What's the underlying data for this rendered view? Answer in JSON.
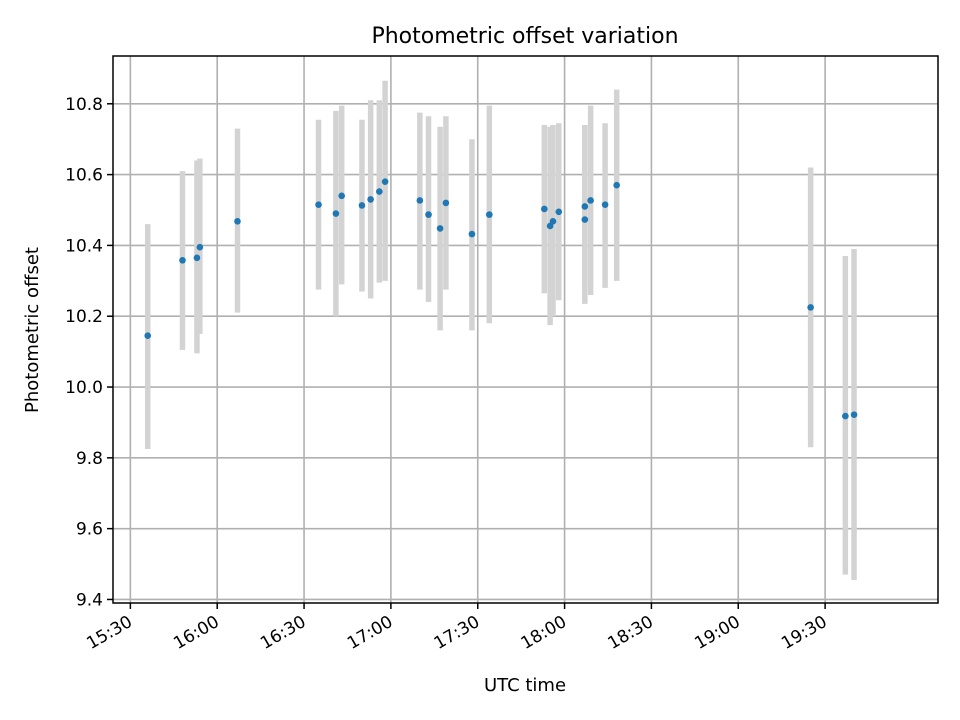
{
  "chart_data": {
    "type": "scatter",
    "title": "Photometric offset variation",
    "xlabel": "UTC time",
    "ylabel": "Photometric offset",
    "x_ticks": [
      "15:30",
      "16:00",
      "16:30",
      "17:00",
      "17:30",
      "18:00",
      "18:30",
      "19:00",
      "19:30"
    ],
    "y_ticks": [
      "9.4",
      "9.6",
      "9.8",
      "10.0",
      "10.2",
      "10.4",
      "10.6",
      "10.8"
    ],
    "xlim": [
      "15:24",
      "20:09"
    ],
    "ylim": [
      9.39,
      10.935
    ],
    "grid": true,
    "colors": {
      "point": "#1f77b4",
      "errorbar": "#d3d3d3"
    },
    "points": [
      {
        "x": "15:36",
        "y": 10.145,
        "ylow": 9.825,
        "yhigh": 10.46
      },
      {
        "x": "15:48",
        "y": 10.358,
        "ylow": 10.105,
        "yhigh": 10.61
      },
      {
        "x": "15:53",
        "y": 10.365,
        "ylow": 10.095,
        "yhigh": 10.64
      },
      {
        "x": "15:54",
        "y": 10.395,
        "ylow": 10.15,
        "yhigh": 10.645
      },
      {
        "x": "16:07",
        "y": 10.468,
        "ylow": 10.21,
        "yhigh": 10.73
      },
      {
        "x": "16:35",
        "y": 10.515,
        "ylow": 10.275,
        "yhigh": 10.755
      },
      {
        "x": "16:41",
        "y": 10.49,
        "ylow": 10.2,
        "yhigh": 10.78
      },
      {
        "x": "16:43",
        "y": 10.54,
        "ylow": 10.29,
        "yhigh": 10.795
      },
      {
        "x": "16:50",
        "y": 10.513,
        "ylow": 10.27,
        "yhigh": 10.755
      },
      {
        "x": "16:53",
        "y": 10.53,
        "ylow": 10.25,
        "yhigh": 10.81
      },
      {
        "x": "16:56",
        "y": 10.552,
        "ylow": 10.295,
        "yhigh": 10.81
      },
      {
        "x": "16:58",
        "y": 10.58,
        "ylow": 10.3,
        "yhigh": 10.865
      },
      {
        "x": "17:10",
        "y": 10.527,
        "ylow": 10.275,
        "yhigh": 10.775
      },
      {
        "x": "17:13",
        "y": 10.487,
        "ylow": 10.24,
        "yhigh": 10.765
      },
      {
        "x": "17:17",
        "y": 10.448,
        "ylow": 10.16,
        "yhigh": 10.735
      },
      {
        "x": "17:19",
        "y": 10.52,
        "ylow": 10.275,
        "yhigh": 10.765
      },
      {
        "x": "17:28",
        "y": 10.432,
        "ylow": 10.16,
        "yhigh": 10.7
      },
      {
        "x": "17:34",
        "y": 10.487,
        "ylow": 10.18,
        "yhigh": 10.795
      },
      {
        "x": "17:53",
        "y": 10.503,
        "ylow": 10.265,
        "yhigh": 10.74
      },
      {
        "x": "17:55",
        "y": 10.455,
        "ylow": 10.175,
        "yhigh": 10.735
      },
      {
        "x": "17:56",
        "y": 10.468,
        "ylow": 10.2,
        "yhigh": 10.74
      },
      {
        "x": "17:58",
        "y": 10.495,
        "ylow": 10.245,
        "yhigh": 10.745
      },
      {
        "x": "18:07",
        "y": 10.473,
        "ylow": 10.235,
        "yhigh": 10.74
      },
      {
        "x": "18:07",
        "y": 10.51,
        "ylow": 10.285,
        "yhigh": 10.74
      },
      {
        "x": "18:09",
        "y": 10.527,
        "ylow": 10.26,
        "yhigh": 10.795
      },
      {
        "x": "18:14",
        "y": 10.515,
        "ylow": 10.28,
        "yhigh": 10.745
      },
      {
        "x": "18:18",
        "y": 10.57,
        "ylow": 10.3,
        "yhigh": 10.84
      },
      {
        "x": "19:25",
        "y": 10.225,
        "ylow": 9.83,
        "yhigh": 10.62
      },
      {
        "x": "19:37",
        "y": 9.918,
        "ylow": 9.47,
        "yhigh": 10.37
      },
      {
        "x": "19:40",
        "y": 9.922,
        "ylow": 9.455,
        "yhigh": 10.39
      }
    ]
  }
}
